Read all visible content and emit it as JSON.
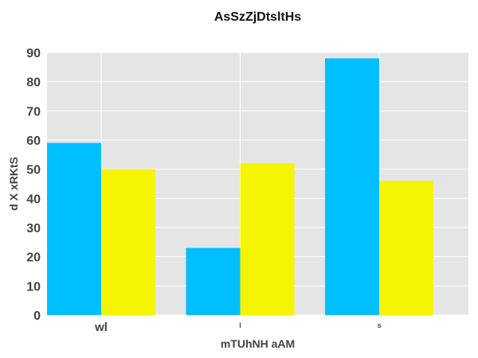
{
  "chart_data": {
    "type": "bar",
    "title": "AsSzZjDtsltHs",
    "xlabel": "mTUhNH aAM",
    "ylabel": "d X xRKtS",
    "categories": [
      "wl",
      "l",
      "s"
    ],
    "category_label_sizes": [
      "large",
      "small",
      "small"
    ],
    "series": [
      {
        "color": "#00bfff",
        "values": [
          59,
          23,
          88
        ]
      },
      {
        "color": "#f5f500",
        "values": [
          50,
          52,
          46
        ]
      }
    ],
    "ylim": [
      0,
      90
    ],
    "yticks": [
      0,
      10,
      20,
      30,
      40,
      50,
      60,
      70,
      80,
      90
    ],
    "grid": true,
    "legend": "none",
    "plot_background": "#e5e5e5",
    "grid_color": "#ffffff"
  }
}
